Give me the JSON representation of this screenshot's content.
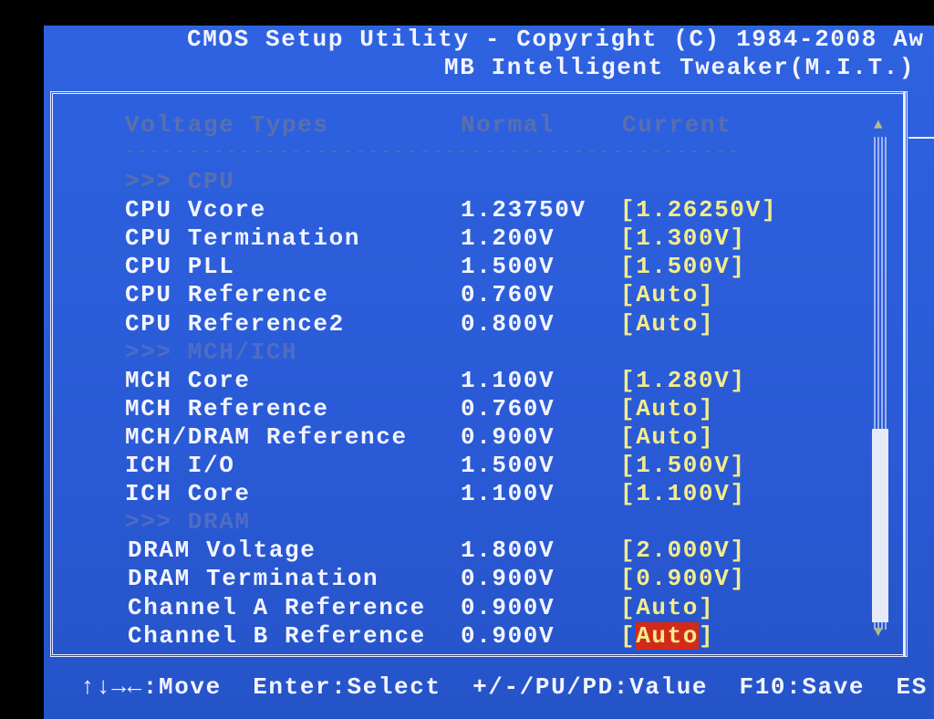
{
  "header": {
    "title": "CMOS Setup Utility - Copyright (C) 1984-2008 Aw",
    "subtitle": "MB Intelligent Tweaker(M.I.T.)"
  },
  "columns": {
    "type": "Voltage Types",
    "normal": "Normal",
    "current": "Current",
    "rule": "------------------------------------------------"
  },
  "sections": [
    {
      "title": ">>> CPU",
      "rows": [
        {
          "label": "CPU Vcore",
          "normal": "1.23750V",
          "current": "[1.26250V]"
        },
        {
          "label": "CPU Termination",
          "normal": "1.200V",
          "current": "[1.300V]"
        },
        {
          "label": "CPU PLL",
          "normal": "1.500V",
          "current": "[1.500V]"
        },
        {
          "label": "CPU Reference",
          "normal": "0.760V",
          "current": "[Auto]"
        },
        {
          "label": "CPU Reference2",
          "normal": "0.800V",
          "current": "[Auto]"
        }
      ]
    },
    {
      "title": ">>> MCH/ICH",
      "rows": [
        {
          "label": "MCH Core",
          "normal": "1.100V",
          "current": "[1.280V]"
        },
        {
          "label": "MCH Reference",
          "normal": "0.760V",
          "current": "[Auto]"
        },
        {
          "label": "MCH/DRAM Reference",
          "normal": "0.900V",
          "current": "[Auto]"
        },
        {
          "label": "ICH I/O",
          "normal": "1.500V",
          "current": "[1.500V]"
        },
        {
          "label": "ICH Core",
          "normal": "1.100V",
          "current": "[1.100V]"
        }
      ]
    },
    {
      "title": ">>> DRAM",
      "rows": [
        {
          "label": "DRAM Voltage",
          "normal": "1.800V",
          "current": "[2.000V]"
        },
        {
          "label": "DRAM Termination",
          "normal": "0.900V",
          "current": "[0.900V]"
        },
        {
          "label": "Channel A Reference",
          "normal": "0.900V",
          "current": "[Auto]"
        },
        {
          "label": "Channel B Reference",
          "normal": "0.900V",
          "current": "[Auto]"
        }
      ]
    }
  ],
  "selected": {
    "section": 2,
    "row": 3,
    "value": "Auto"
  },
  "footer": {
    "hint": "↑↓→←:Move  Enter:Select  +/-/PU/PD:Value  F10:Save  ES"
  },
  "scrollbar": {
    "up": "▲",
    "down": "▼"
  }
}
